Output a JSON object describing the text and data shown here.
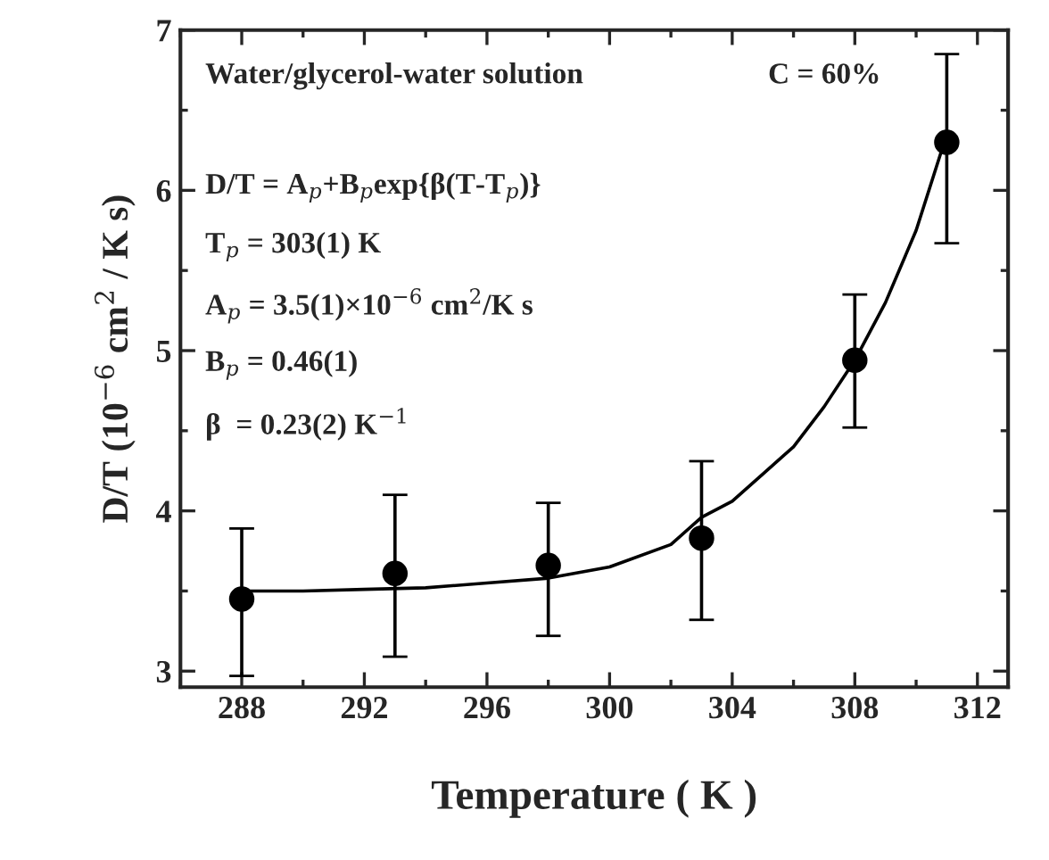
{
  "chart_data": {
    "type": "scatter",
    "xlabel": "Temperature ( K )",
    "ylabel": "D/T (10$^{−6}$ cm$^{2}$ / K s)",
    "annotations": [
      "Water/glycerol-water solution",
      "C = 60%",
      "D/T = A$_{p}$+B$_{p}$exp{β(T-T$_{p}$)}",
      "T$_{p}$ = 303(1) K",
      "A$_{p}$ = 3.5(1)×10$^{−6}$ cm$^{2}$/K s",
      "B$_{p}$ = 0.46(1)",
      "β  = 0.23(2) K$^{−1}$"
    ],
    "series": [
      {
        "color": "#000000",
        "marker": "circle",
        "x": [
          288,
          293,
          298,
          303,
          308,
          311
        ],
        "values": [
          3.45,
          3.61,
          3.66,
          3.83,
          4.94,
          6.3
        ],
        "errors": [
          [
            2.97,
            3.89
          ],
          [
            3.09,
            4.1
          ],
          [
            3.22,
            4.05
          ],
          [
            3.32,
            4.31
          ],
          [
            4.52,
            5.35
          ],
          [
            5.67,
            6.85
          ]
        ]
      },
      {
        "type": "line",
        "color": "#000000",
        "line_style": "solid",
        "x": [
          288,
          290,
          292,
          294,
          296,
          298,
          300,
          302,
          303,
          304,
          305,
          306,
          307,
          308,
          309,
          310,
          311
        ],
        "values": [
          3.5,
          3.5,
          3.51,
          3.52,
          3.55,
          3.58,
          3.65,
          3.79,
          3.96,
          4.06,
          4.23,
          4.4,
          4.65,
          4.94,
          5.3,
          5.75,
          6.35
        ]
      }
    ],
    "xlim": [
      286,
      313
    ],
    "xticks": [
      288,
      292,
      296,
      300,
      304,
      308,
      312
    ],
    "ylim": [
      2.9,
      7
    ],
    "yticks": [
      3,
      4,
      5,
      6,
      7
    ],
    "grid": false,
    "legend": false
  }
}
